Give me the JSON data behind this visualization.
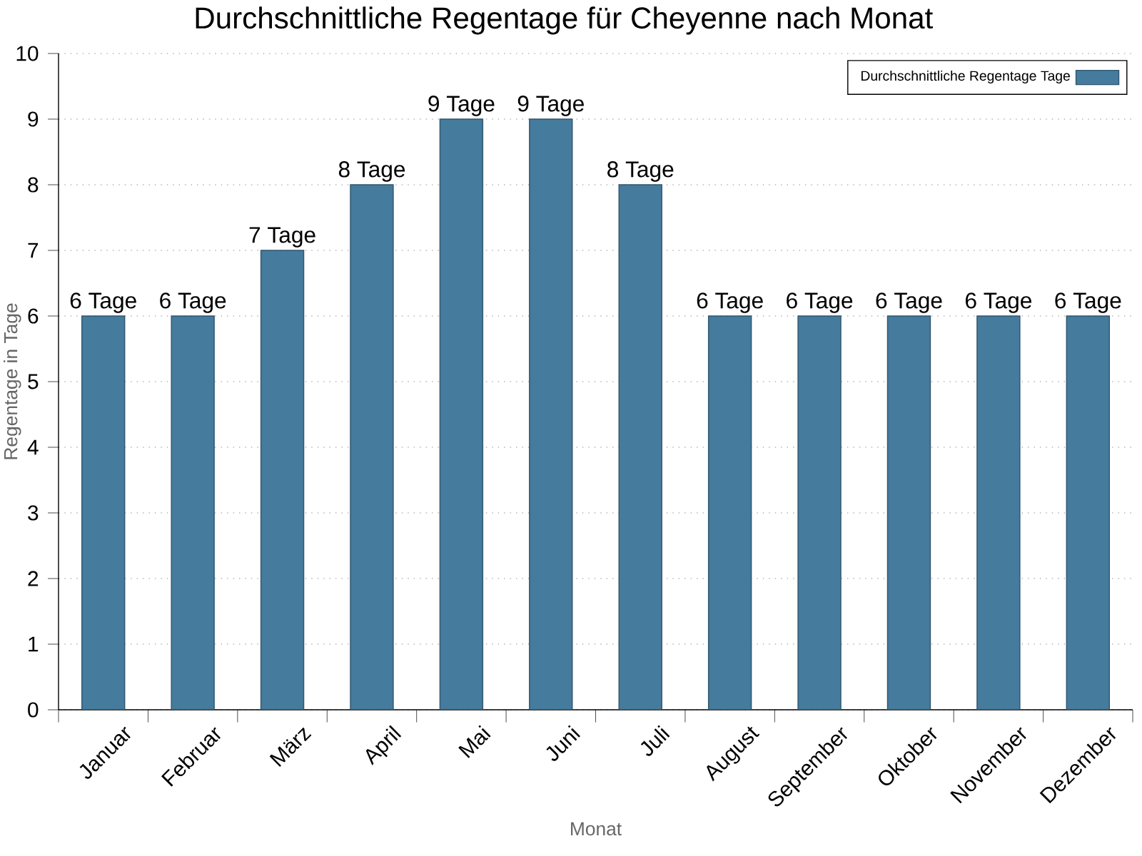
{
  "chart_data": {
    "type": "bar",
    "title": "Durchschnittliche Regentage für Cheyenne nach Monat",
    "xlabel": "Monat",
    "ylabel": "Regentage in Tage",
    "categories": [
      "Januar",
      "Februar",
      "März",
      "April",
      "Mai",
      "Juni",
      "Juli",
      "August",
      "September",
      "Oktober",
      "November",
      "Dezember"
    ],
    "series": [
      {
        "name": "Durchschnittliche Regentage Tage",
        "color": "#457b9d",
        "values": [
          6,
          6,
          7,
          8,
          9,
          9,
          8,
          6,
          6,
          6,
          6,
          6
        ],
        "value_labels": [
          "6 Tage",
          "6 Tage",
          "7 Tage",
          "8 Tage",
          "9 Tage",
          "9 Tage",
          "8 Tage",
          "6 Tage",
          "6 Tage",
          "6 Tage",
          "6 Tage",
          "6 Tage"
        ]
      }
    ],
    "ylim": [
      0,
      10
    ],
    "yticks": [
      0,
      1,
      2,
      3,
      4,
      5,
      6,
      7,
      8,
      9,
      10
    ],
    "grid": "y",
    "legend": "top right"
  }
}
